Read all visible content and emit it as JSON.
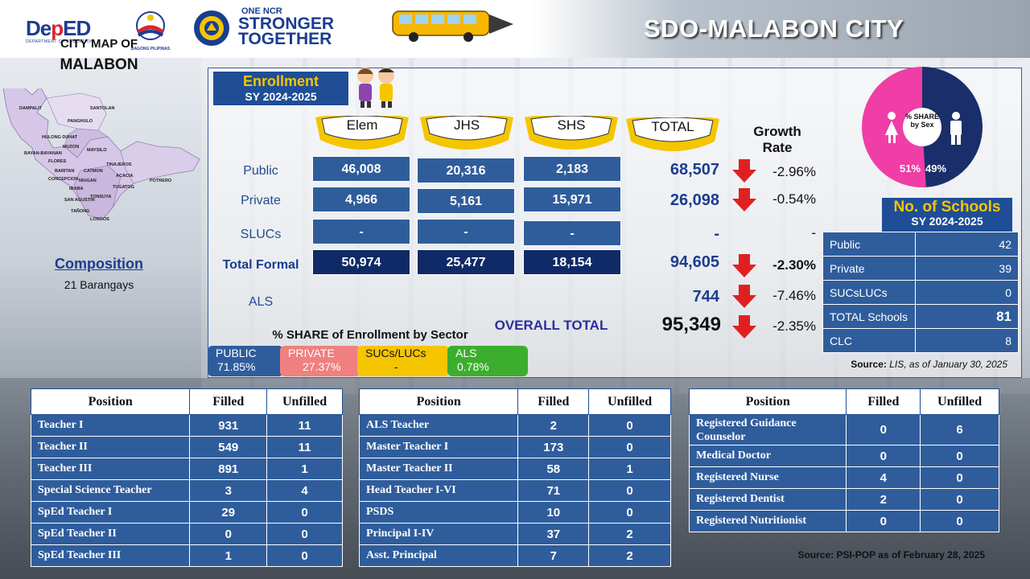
{
  "header": {
    "title": "SDO-MALABON CITY",
    "deped_logo_main": "DepED",
    "deped_logo_sub": "DEPARTMENT OF EDUCATION",
    "bp_logo_text": "BAGONG PILIPINAS",
    "ncr_top": "ONE NCR",
    "ncr_mid1": "STRONGER",
    "ncr_mid2": "TOGETHER"
  },
  "left": {
    "map_label": "CITY MAP OF",
    "map_name": "MALABON",
    "barangays": [
      "DAMPALIT",
      "SANTOLAN",
      "PANGHULO",
      "HULONG DUHAT",
      "MUZON",
      "BAYAN-BAYANAN",
      "FLORES",
      "MAYSILO",
      "BARITAN",
      "CATMON",
      "TINAJEROS",
      "CONCEPCION",
      "NIUGAN",
      "ACACIA",
      "POTRERO",
      "IBABA",
      "TUGATOG",
      "SAN AGUSTIN",
      "TONSUYA",
      "TAÑONG",
      "LONGOS"
    ],
    "composition_title": "Composition",
    "composition_value": "21 Barangays"
  },
  "enrollment": {
    "title": "Enrollment",
    "sy": "SY 2024-2025",
    "columns": [
      "Elem",
      "JHS",
      "SHS",
      "TOTAL"
    ],
    "growth_header": "Growth Rate",
    "rows": [
      {
        "label": "Public",
        "elem": "46,008",
        "jhs": "20,316",
        "shs": "2,183",
        "total": "68,507",
        "growth": "-2.96%",
        "arrow": true
      },
      {
        "label": "Private",
        "elem": "4,966",
        "jhs": "5,161",
        "shs": "15,971",
        "total": "26,098",
        "growth": "-0.54%",
        "arrow": true
      },
      {
        "label": "SLUCs",
        "elem": "-",
        "jhs": "-",
        "shs": "-",
        "total": "-",
        "growth": "-",
        "arrow": false
      },
      {
        "label": "Total Formal",
        "elem": "50,974",
        "jhs": "25,477",
        "shs": "18,154",
        "total": "94,605",
        "growth": "-2.30%",
        "arrow": true
      }
    ],
    "als": {
      "label": "ALS",
      "total": "744",
      "growth": "-7.46%"
    },
    "overall": {
      "label": "OVERALL TOTAL",
      "total": "95,349",
      "growth": "-2.35%"
    },
    "share_title": "% SHARE of Enrollment by Sector",
    "shares": [
      {
        "label": "PUBLIC",
        "value": "71.85%",
        "bg": "#2f5d9c",
        "fg": "#ffffff"
      },
      {
        "label": "PRIVATE",
        "value": "27.37%",
        "bg": "#f08080",
        "fg": "#ffffff"
      },
      {
        "label": "SUCs/LUCs",
        "value": "-",
        "bg": "#f5c500",
        "fg": "#111111"
      },
      {
        "label": "ALS",
        "value": "0.78%",
        "bg": "#3cae2e",
        "fg": "#ffffff"
      }
    ]
  },
  "sex_share": {
    "label": "% SHARE by Sex",
    "female": "51%",
    "male": "49%",
    "female_fraction": 0.51,
    "female_color": "#ef3ea6",
    "male_color": "#1a2e6b"
  },
  "schools": {
    "title": "No. of Schools",
    "sy": "SY 2024-2025",
    "rows": [
      {
        "label": "Public",
        "value": "42"
      },
      {
        "label": "Private",
        "value": "39"
      },
      {
        "label": "SUCsLUCs",
        "value": "0"
      },
      {
        "label": "TOTAL Schools",
        "value": "81"
      },
      {
        "label": "CLC",
        "value": "8"
      }
    ],
    "source_label": "Source:",
    "source_text": "LIS, as of January 30, 2025"
  },
  "positions": {
    "headers": [
      "Position",
      "Filled",
      "Unfilled"
    ],
    "table1": [
      {
        "name": "Teacher I",
        "filled": "931",
        "unfilled": "11"
      },
      {
        "name": "Teacher II",
        "filled": "549",
        "unfilled": "11"
      },
      {
        "name": "Teacher III",
        "filled": "891",
        "unfilled": "1"
      },
      {
        "name": "Special Science Teacher",
        "filled": "3",
        "unfilled": "4"
      },
      {
        "name": "SpEd Teacher I",
        "filled": "29",
        "unfilled": "0"
      },
      {
        "name": "SpEd Teacher II",
        "filled": "0",
        "unfilled": "0"
      },
      {
        "name": "SpEd Teacher III",
        "filled": "1",
        "unfilled": "0"
      }
    ],
    "table2": [
      {
        "name": "ALS Teacher",
        "filled": "2",
        "unfilled": "0"
      },
      {
        "name": "Master Teacher I",
        "filled": "173",
        "unfilled": "0"
      },
      {
        "name": "Master Teacher II",
        "filled": "58",
        "unfilled": "1"
      },
      {
        "name": "Head Teacher I-VI",
        "filled": "71",
        "unfilled": "0"
      },
      {
        "name": "PSDS",
        "filled": "10",
        "unfilled": "0"
      },
      {
        "name": "Principal I-IV",
        "filled": "37",
        "unfilled": "2"
      },
      {
        "name": "Asst. Principal",
        "filled": "7",
        "unfilled": "2"
      }
    ],
    "table3": [
      {
        "name": "Registered Guidance Counselor",
        "filled": "0",
        "unfilled": "6"
      },
      {
        "name": "Medical Doctor",
        "filled": "0",
        "unfilled": "0"
      },
      {
        "name": "Registered Nurse",
        "filled": "4",
        "unfilled": "0"
      },
      {
        "name": "Registered Dentist",
        "filled": "2",
        "unfilled": "0"
      },
      {
        "name": "Registered Nutritionist",
        "filled": "0",
        "unfilled": "0"
      }
    ],
    "source": "Source: PSI-POP as of February 28, 2025"
  }
}
